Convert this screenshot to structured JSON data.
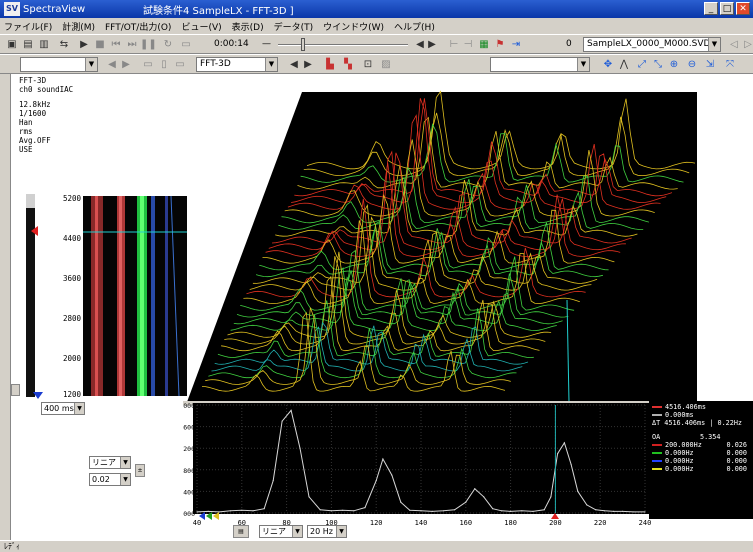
{
  "window": {
    "app_name": "SpectraView",
    "doc_title": "試験条件4  SampleLX - FFT-3D ]"
  },
  "menu": [
    "ファイル(F)",
    "計測(M)",
    "FFT/OT/出力(O)",
    "ビュー(V)",
    "表示(D)",
    "データ(T)",
    "ウインドウ(W)",
    "ヘルプ(H)"
  ],
  "toolbar1": {
    "time_readout": "0:00:14",
    "count": "0",
    "file_name": "SampleLX_0000_M000.SVD",
    "time_fraction": 0.18
  },
  "toolbar2": {
    "view_mode": "FFT-3D"
  },
  "info_block": {
    "lines1": [
      "FFT-3D",
      "ch0 soundIAC"
    ],
    "lines2": [
      "12.8kHz",
      "1/1600",
      "Han",
      "rms",
      "Avg.OFF",
      "USE"
    ]
  },
  "spectrogram": {
    "y_ticks": [
      "5200",
      "4400",
      "3600",
      "2800",
      "2000",
      "1200"
    ],
    "time_window": "400 ms"
  },
  "left_controls": {
    "select_a": "リニア",
    "select_b": "0.02"
  },
  "plot2d": {
    "y_ticks": [
      "0.2000",
      "0.1600",
      "0.1200",
      "0.0800",
      "0.0400",
      "0.0000"
    ],
    "x_ticks": [
      "40",
      "60",
      "80",
      "100",
      "120",
      "140",
      "160",
      "180",
      "200",
      "220",
      "240"
    ]
  },
  "legend": {
    "header": [
      "4516.406ms",
      "0.000ms",
      "ΔT 4516.406ms  | 0.22Hz"
    ],
    "header_colors": [
      "#e03030",
      "#b0b0b0",
      "#9090ff"
    ],
    "section": "OA",
    "oa_value": "5.354",
    "rows": [
      {
        "label": "200.000Hz",
        "value": "0.026",
        "color": "#d02020"
      },
      {
        "label": "0.000Hz",
        "value": "0.000",
        "color": "#20c020"
      },
      {
        "label": "0.000Hz",
        "value": "0.000",
        "color": "#2040ff"
      },
      {
        "label": "0.000Hz",
        "value": "0.000",
        "color": "#e0e020"
      }
    ]
  },
  "bottom_controls": {
    "scale_type": "リニア",
    "bandwidth": "20 Hz"
  },
  "status": {
    "text": "ﾚﾃﾞｨ"
  },
  "colors": {
    "workspace_bg": "#ffffff",
    "plot_bg": "#000000",
    "surface_low": "#2a3a9a",
    "surface_high": "#e03020",
    "accent_green": "#22c044"
  },
  "chart_data": [
    {
      "type": "line",
      "title": "",
      "xlabel": "",
      "ylabel": "",
      "xlim": [
        40,
        240
      ],
      "ylim": [
        0,
        0.2
      ],
      "x": [
        40,
        45,
        50,
        55,
        60,
        65,
        70,
        74,
        78,
        82,
        86,
        90,
        95,
        100,
        105,
        110,
        115,
        120,
        123,
        127,
        131,
        135,
        140,
        145,
        150,
        155,
        160,
        164,
        168,
        172,
        176,
        180,
        185,
        190,
        195,
        198,
        201,
        204,
        207,
        210,
        214,
        218,
        222,
        226,
        230,
        235,
        240
      ],
      "y": [
        0.002,
        0.003,
        0.002,
        0.004,
        0.005,
        0.004,
        0.008,
        0.06,
        0.17,
        0.19,
        0.12,
        0.03,
        0.006,
        0.004,
        0.005,
        0.004,
        0.01,
        0.06,
        0.1,
        0.07,
        0.02,
        0.005,
        0.004,
        0.003,
        0.004,
        0.006,
        0.02,
        0.045,
        0.03,
        0.008,
        0.004,
        0.003,
        0.004,
        0.003,
        0.006,
        0.03,
        0.11,
        0.13,
        0.09,
        0.04,
        0.015,
        0.006,
        0.004,
        0.003,
        0.003,
        0.002,
        0.002
      ],
      "cursor_x": 200
    }
  ]
}
